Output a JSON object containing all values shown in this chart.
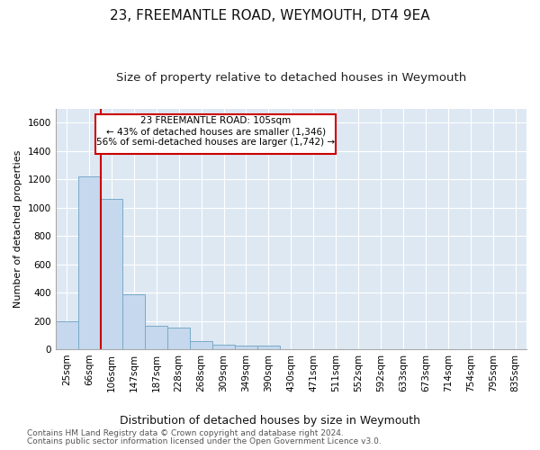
{
  "title": "23, FREEMANTLE ROAD, WEYMOUTH, DT4 9EA",
  "subtitle": "Size of property relative to detached houses in Weymouth",
  "xlabel": "Distribution of detached houses by size in Weymouth",
  "ylabel": "Number of detached properties",
  "bar_color": "#c5d8ed",
  "bar_edge_color": "#7aaac8",
  "bg_color": "#dde8f3",
  "grid_color": "#ffffff",
  "property_line_color": "#cc0000",
  "categories": [
    "25sqm",
    "66sqm",
    "106sqm",
    "147sqm",
    "187sqm",
    "228sqm",
    "268sqm",
    "309sqm",
    "349sqm",
    "390sqm",
    "430sqm",
    "471sqm",
    "511sqm",
    "552sqm",
    "592sqm",
    "633sqm",
    "673sqm",
    "714sqm",
    "754sqm",
    "795sqm",
    "835sqm"
  ],
  "values": [
    200,
    1220,
    1060,
    390,
    163,
    155,
    55,
    30,
    25,
    25,
    0,
    0,
    0,
    0,
    0,
    0,
    0,
    0,
    0,
    0,
    0
  ],
  "ylim": [
    0,
    1700
  ],
  "yticks": [
    0,
    200,
    400,
    600,
    800,
    1000,
    1200,
    1400,
    1600
  ],
  "property_line_x": 1.5,
  "annotation_text_line1": "23 FREEMANTLE ROAD: 105sqm",
  "annotation_text_line2": "← 43% of detached houses are smaller (1,346)",
  "annotation_text_line3": "56% of semi-detached houses are larger (1,742) →",
  "footnote1": "Contains HM Land Registry data © Crown copyright and database right 2024.",
  "footnote2": "Contains public sector information licensed under the Open Government Licence v3.0.",
  "title_fontsize": 11,
  "subtitle_fontsize": 9.5,
  "xlabel_fontsize": 9,
  "ylabel_fontsize": 8,
  "tick_fontsize": 7.5,
  "footnote_fontsize": 6.5
}
